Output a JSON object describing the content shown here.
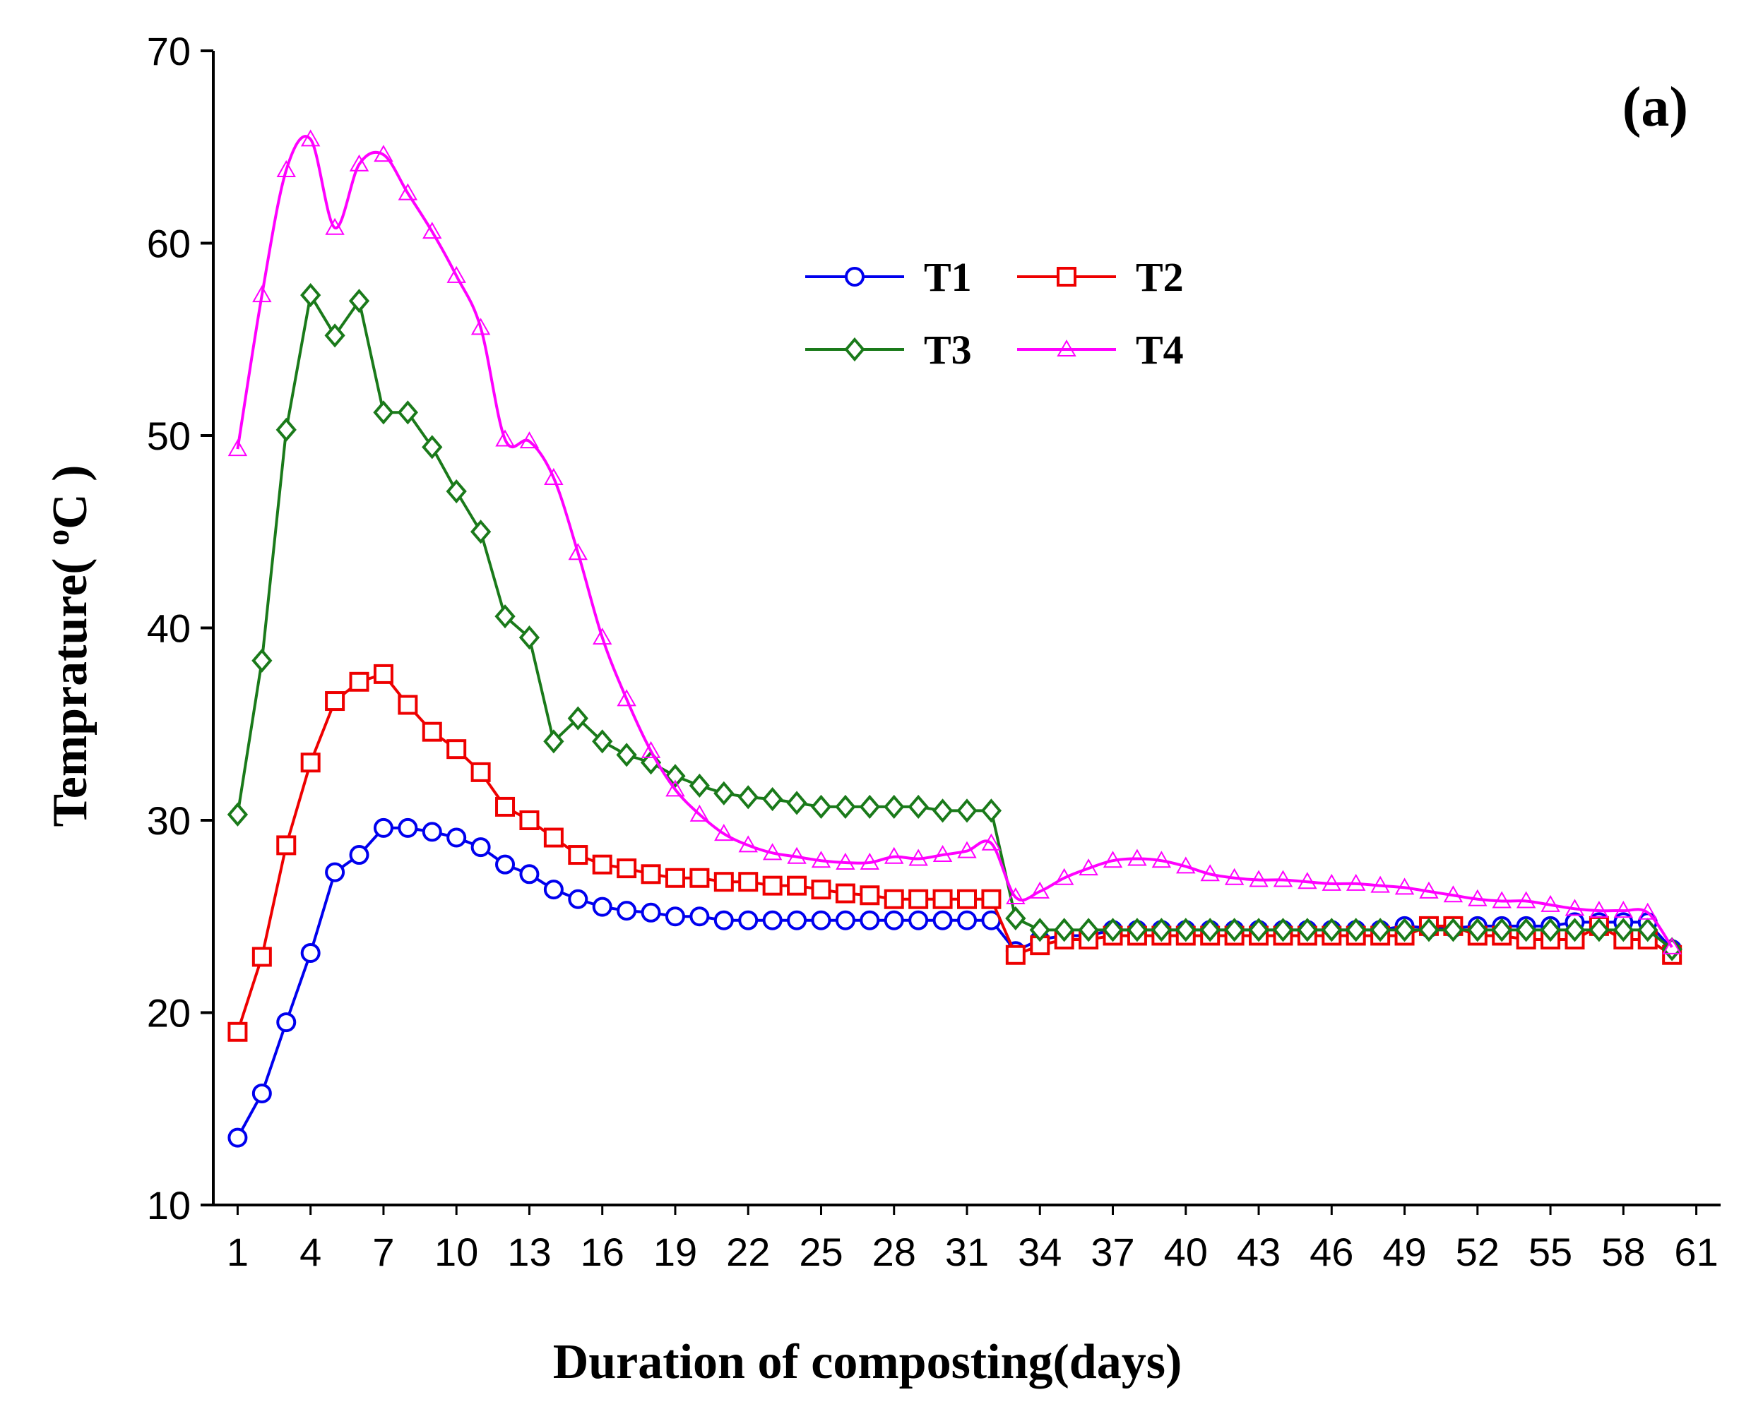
{
  "chart_data": {
    "type": "line",
    "panel_label": "(a)",
    "xlabel": "Duration of composting(days)",
    "ylabel_parts": [
      "Temprature( ",
      "o",
      "C )"
    ],
    "xlim": [
      0,
      62
    ],
    "ylim": [
      10,
      70
    ],
    "x_ticks": [
      1,
      4,
      7,
      10,
      13,
      16,
      19,
      22,
      25,
      28,
      31,
      34,
      37,
      40,
      43,
      46,
      49,
      52,
      55,
      58,
      61
    ],
    "y_ticks": [
      10,
      20,
      30,
      40,
      50,
      60,
      70
    ],
    "x": [
      1,
      2,
      3,
      4,
      5,
      6,
      7,
      8,
      9,
      10,
      11,
      12,
      13,
      14,
      15,
      16,
      17,
      18,
      19,
      20,
      21,
      22,
      23,
      24,
      25,
      26,
      27,
      28,
      29,
      30,
      31,
      32,
      33,
      34,
      35,
      36,
      37,
      38,
      39,
      40,
      41,
      42,
      43,
      44,
      45,
      46,
      47,
      48,
      49,
      50,
      51,
      52,
      53,
      54,
      55,
      56,
      57,
      58,
      59,
      60
    ],
    "series": [
      {
        "name": "T1",
        "color": "#0000ee",
        "marker": "circle",
        "values": [
          13.5,
          15.8,
          19.5,
          23.1,
          27.3,
          28.2,
          29.6,
          29.6,
          29.4,
          29.1,
          28.6,
          27.7,
          27.2,
          26.4,
          25.9,
          25.5,
          25.3,
          25.2,
          25.0,
          25.0,
          24.8,
          24.8,
          24.8,
          24.8,
          24.8,
          24.8,
          24.8,
          24.8,
          24.8,
          24.8,
          24.8,
          24.8,
          23.2,
          23.8,
          24.0,
          24.0,
          24.3,
          24.3,
          24.3,
          24.3,
          24.3,
          24.3,
          24.3,
          24.3,
          24.3,
          24.3,
          24.3,
          24.3,
          24.5,
          24.4,
          24.4,
          24.5,
          24.5,
          24.5,
          24.5,
          24.7,
          24.7,
          24.7,
          24.7,
          23.3
        ]
      },
      {
        "name": "T2",
        "color": "#ee0000",
        "marker": "square",
        "values": [
          19.0,
          22.9,
          28.7,
          33.0,
          36.2,
          37.2,
          37.6,
          36.0,
          34.6,
          33.7,
          32.5,
          30.7,
          30.0,
          29.1,
          28.2,
          27.7,
          27.5,
          27.2,
          27.0,
          27.0,
          26.8,
          26.8,
          26.6,
          26.6,
          26.4,
          26.2,
          26.1,
          25.9,
          25.9,
          25.9,
          25.9,
          25.9,
          23.0,
          23.5,
          23.8,
          23.8,
          24.0,
          24.0,
          24.0,
          24.0,
          24.0,
          24.0,
          24.0,
          24.0,
          24.0,
          24.0,
          24.0,
          24.0,
          24.0,
          24.5,
          24.5,
          24.0,
          24.0,
          23.8,
          23.8,
          23.8,
          24.5,
          23.8,
          23.8,
          23.0
        ]
      },
      {
        "name": "T3",
        "color": "#1a7a1a",
        "marker": "diamond",
        "values": [
          30.3,
          38.3,
          50.3,
          57.3,
          55.2,
          57.0,
          51.2,
          51.2,
          49.4,
          47.1,
          45.0,
          40.6,
          39.5,
          34.1,
          35.3,
          34.1,
          33.4,
          33.0,
          32.3,
          31.8,
          31.4,
          31.2,
          31.1,
          30.9,
          30.7,
          30.7,
          30.7,
          30.7,
          30.7,
          30.5,
          30.5,
          30.5,
          24.9,
          24.3,
          24.3,
          24.3,
          24.3,
          24.3,
          24.3,
          24.3,
          24.3,
          24.3,
          24.3,
          24.3,
          24.3,
          24.3,
          24.3,
          24.3,
          24.3,
          24.3,
          24.3,
          24.3,
          24.3,
          24.3,
          24.3,
          24.3,
          24.3,
          24.3,
          24.3,
          23.3
        ]
      },
      {
        "name": "T4",
        "color": "#ff00ff",
        "marker": "triangle",
        "values": [
          49.3,
          57.3,
          63.8,
          65.4,
          60.8,
          64.1,
          64.6,
          62.6,
          60.6,
          58.3,
          55.6,
          49.8,
          49.7,
          47.8,
          43.9,
          39.5,
          36.3,
          33.6,
          31.6,
          30.3,
          29.3,
          28.7,
          28.3,
          28.1,
          27.9,
          27.8,
          27.8,
          28.1,
          28.0,
          28.2,
          28.4,
          28.8,
          26.0,
          26.3,
          27.0,
          27.5,
          27.9,
          28.0,
          27.9,
          27.6,
          27.2,
          27.0,
          26.9,
          26.9,
          26.8,
          26.7,
          26.7,
          26.6,
          26.5,
          26.3,
          26.1,
          25.9,
          25.8,
          25.8,
          25.6,
          25.4,
          25.3,
          25.3,
          25.2,
          23.4
        ]
      }
    ],
    "legend": {
      "placement": "top-center",
      "columns": 2
    }
  }
}
